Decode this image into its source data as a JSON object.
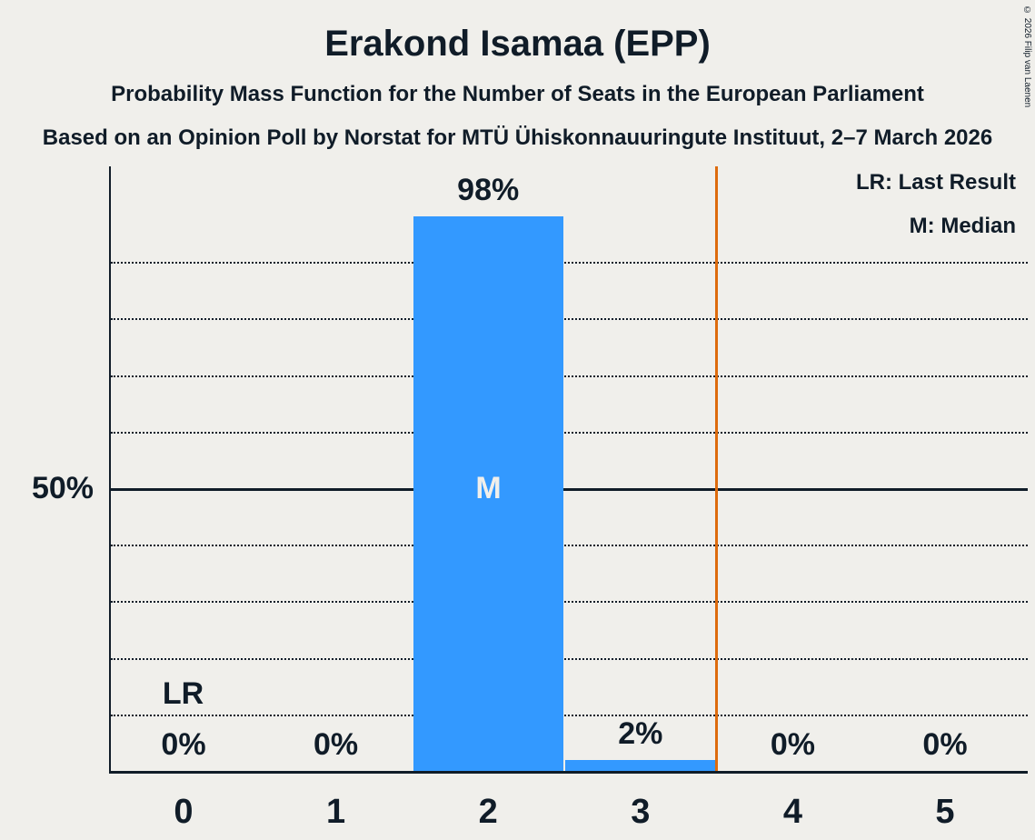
{
  "header": {
    "title": "Erakond Isamaa (EPP)",
    "subtitle": "Probability Mass Function for the Number of Seats in the European Parliament",
    "source_line": "Based on an Opinion Poll by Norstat for MTÜ Ühiskonnauuringute Instituut, 2–7 March 2026",
    "copyright": "© 2026 Filip van Laenen"
  },
  "legend": {
    "last_result": "LR: Last Result",
    "median": "M: Median"
  },
  "colors": {
    "background": "#f0efeb",
    "ink": "#101c28",
    "bar": "#3399ff",
    "last_result_line": "#dd6b0d"
  },
  "chart_data": {
    "type": "bar",
    "title": "Erakond Isamaa (EPP)",
    "categories": [
      "0",
      "1",
      "2",
      "3",
      "4",
      "5"
    ],
    "values": [
      0,
      0,
      98,
      2,
      0,
      0
    ],
    "value_labels": [
      "0%",
      "0%",
      "98%",
      "2%",
      "0%",
      "0%"
    ],
    "ylim": [
      0,
      100
    ],
    "y_axis_tick": {
      "value": 50,
      "label": "50%"
    },
    "gridlines": [
      10,
      20,
      30,
      40,
      60,
      70,
      80,
      90
    ],
    "grid_style": "dotted horizontal",
    "median": {
      "category": "2",
      "label": "M"
    },
    "last_result": {
      "category": "0",
      "label": "LR"
    },
    "vertical_line": {
      "x": 3.5,
      "color": "#dd6b0d"
    },
    "bar_color": "#3399ff",
    "legend_position": "top-right"
  }
}
